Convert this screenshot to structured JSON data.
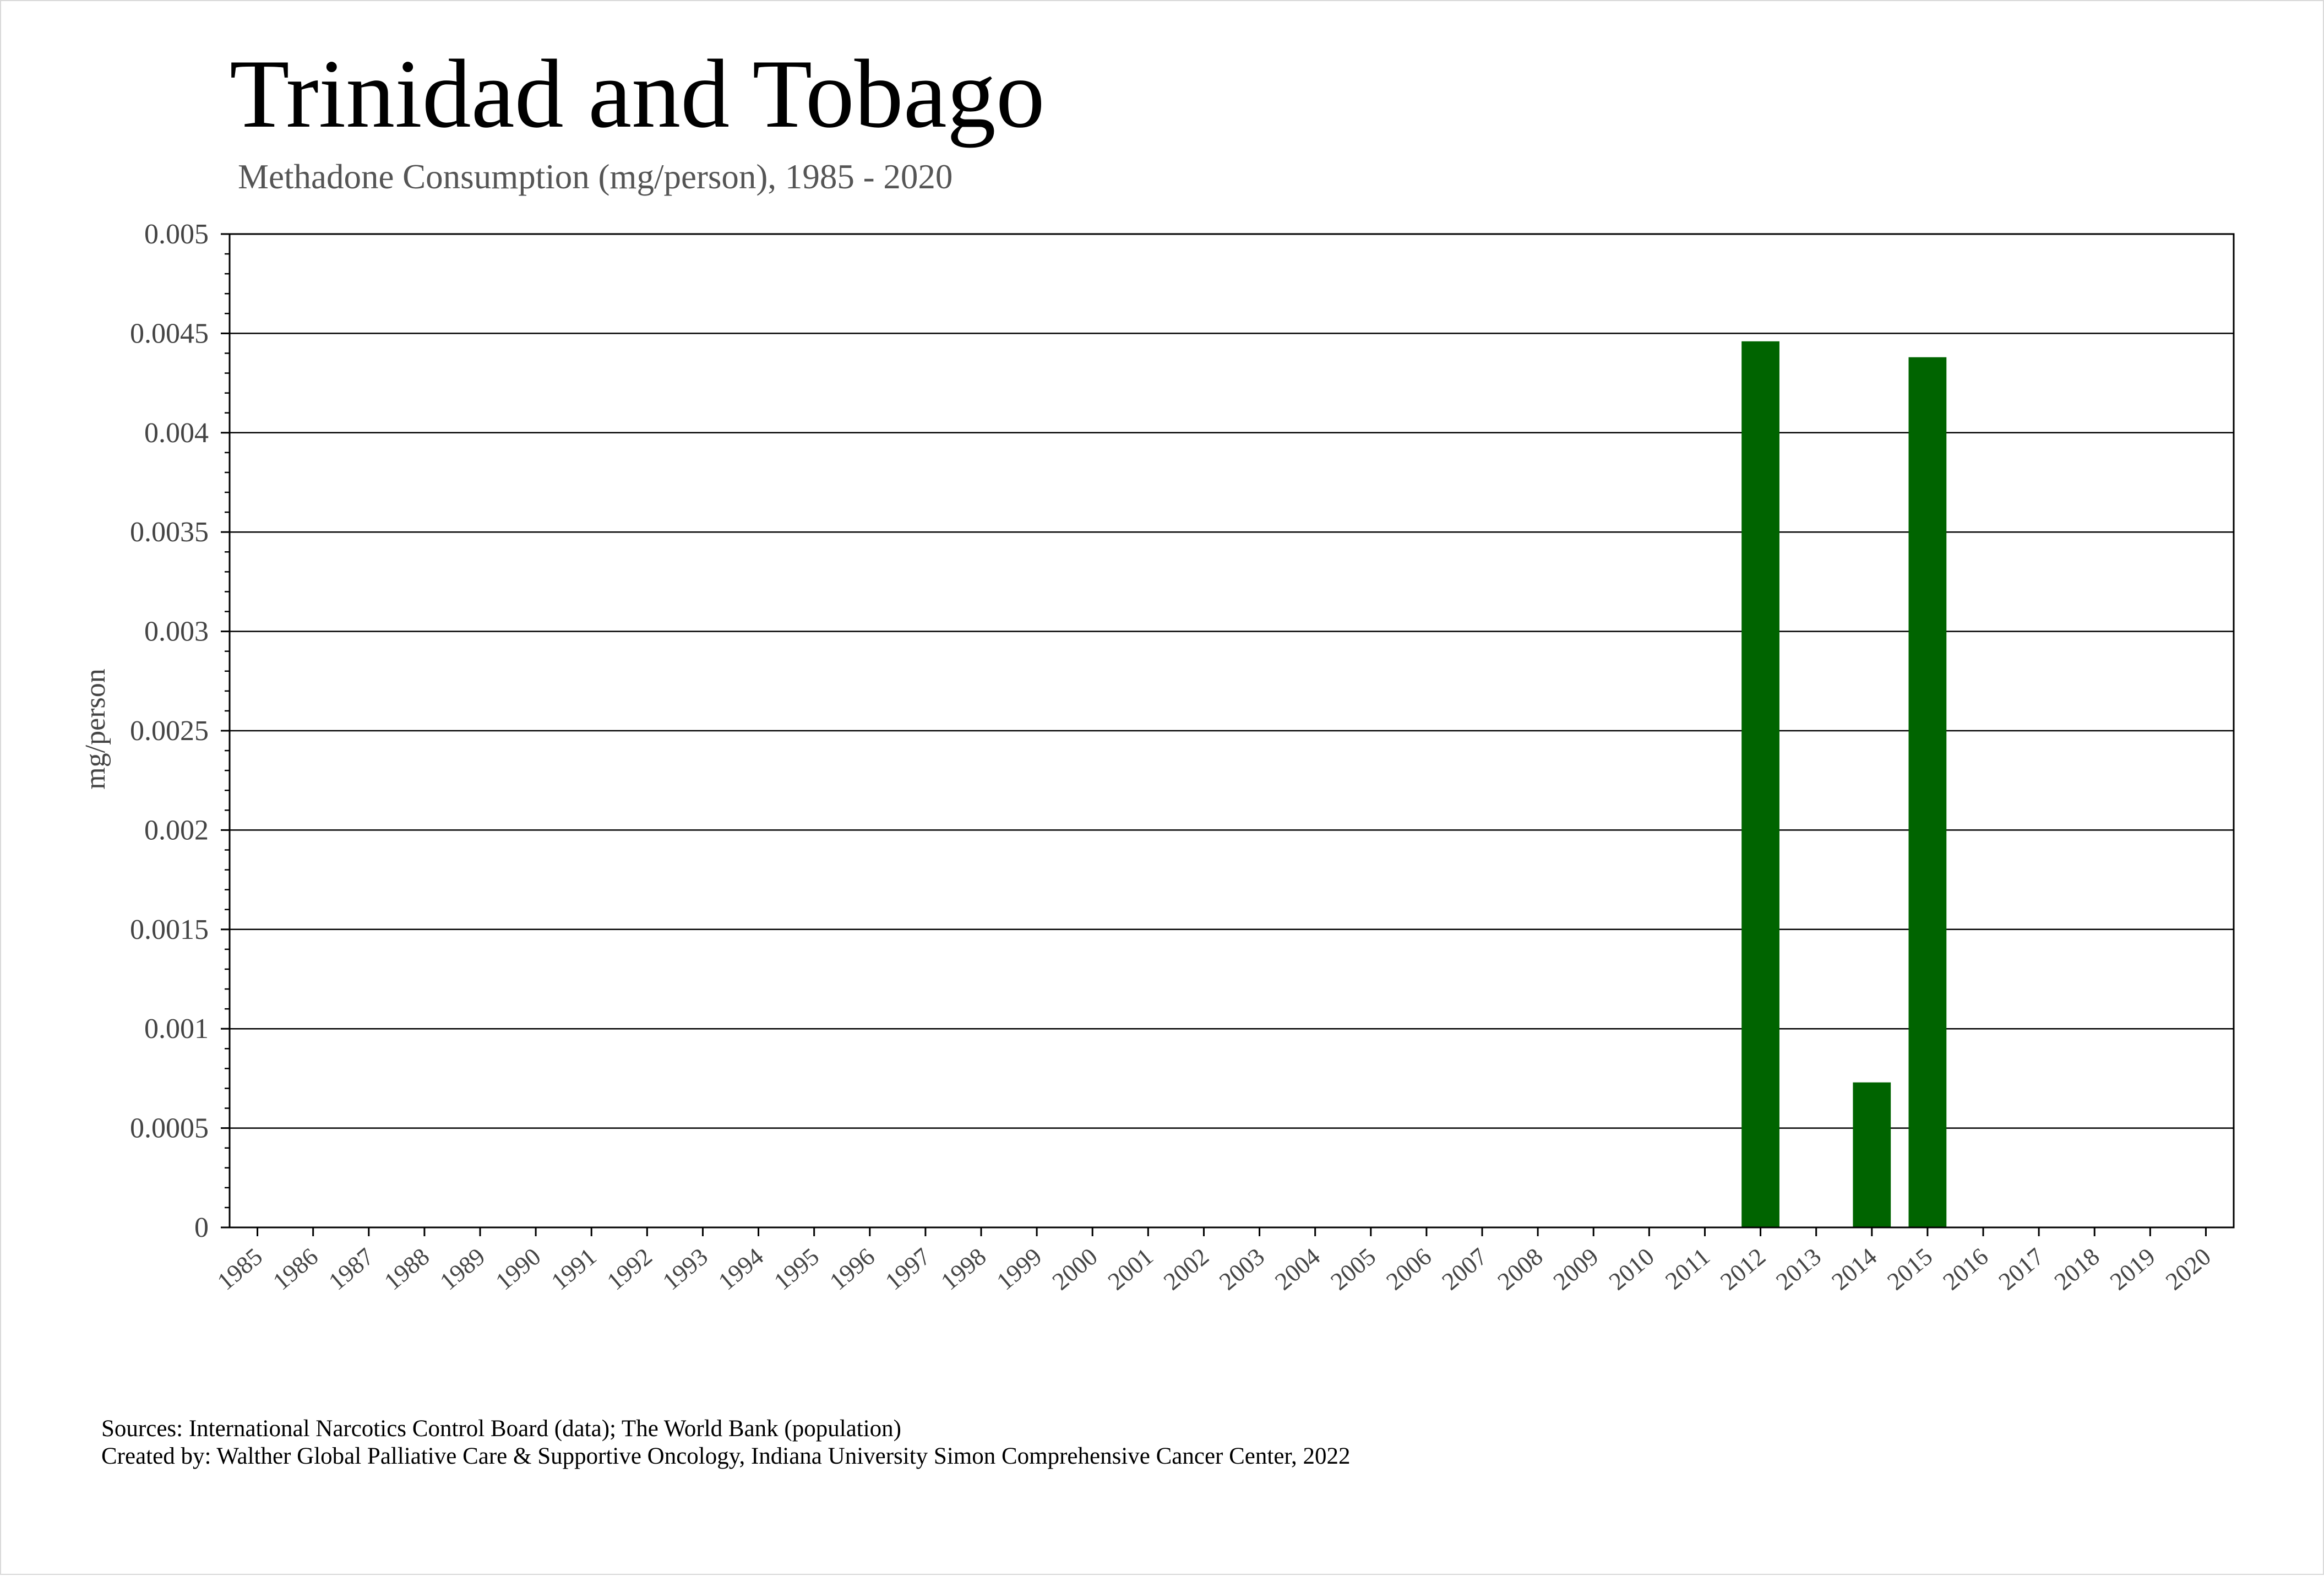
{
  "chart_data": {
    "type": "bar",
    "title": "Trinidad and Tobago",
    "subtitle": "Methadone Consumption (mg/person), 1985 - 2020",
    "xlabel": "",
    "ylabel": "mg/person",
    "ylim": [
      0,
      0.005
    ],
    "yticks": [
      "0",
      "0.0005",
      "0.001",
      "0.0015",
      "0.002",
      "0.0025",
      "0.003",
      "0.0035",
      "0.004",
      "0.0045",
      "0.005"
    ],
    "grid": true,
    "legend": "none",
    "bar_color": "#006400",
    "categories": [
      "1985",
      "1986",
      "1987",
      "1988",
      "1989",
      "1990",
      "1991",
      "1992",
      "1993",
      "1994",
      "1995",
      "1996",
      "1997",
      "1998",
      "1999",
      "2000",
      "2001",
      "2002",
      "2003",
      "2004",
      "2005",
      "2006",
      "2007",
      "2008",
      "2009",
      "2010",
      "2011",
      "2012",
      "2013",
      "2014",
      "2015",
      "2016",
      "2017",
      "2018",
      "2019",
      "2020"
    ],
    "values": [
      0,
      0,
      0,
      0,
      0,
      0,
      0,
      0,
      0,
      0,
      0,
      0,
      0,
      0,
      0,
      0,
      0,
      0,
      0,
      0,
      0,
      0,
      0,
      0,
      0,
      0,
      0,
      0.00446,
      0,
      0.00073,
      0.00438,
      0,
      0,
      0,
      0,
      0
    ]
  },
  "footer": {
    "sources": "Sources: International Narcotics Control Board (data); The World Bank (population)",
    "credit": "Created by: Walther Global Palliative Care & Supportive Oncology, Indiana University Simon Comprehensive Cancer Center, 2022"
  }
}
